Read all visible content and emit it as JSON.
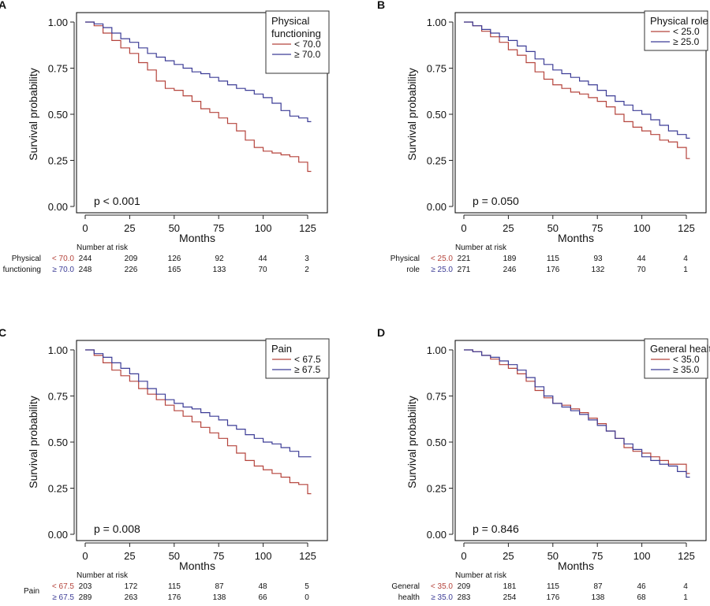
{
  "colors": {
    "low": "#b5443c",
    "high": "#3c3c96",
    "axis": "#222222",
    "frame": "#000000"
  },
  "chart_data": [
    {
      "type": "line",
      "panel_label": "A",
      "title": "",
      "xlabel": "Months",
      "ylabel": "Survival probability",
      "xlim": [
        0,
        130
      ],
      "ylim": [
        0,
        1
      ],
      "x_ticks": [
        "0",
        "25",
        "50",
        "75",
        "100",
        "125"
      ],
      "y_ticks": [
        "0.00",
        "0.25",
        "0.50",
        "0.75",
        "1.00"
      ],
      "legend_title": "Physical\nfunctioning",
      "legend_position": "top-right",
      "p_value": "p < 0.001",
      "risk_header": "Number at risk",
      "risk_label": "Physical\nfunctioning",
      "series": [
        {
          "name": "< 70.0",
          "color": "#b5443c",
          "x": [
            0,
            5,
            10,
            15,
            20,
            25,
            30,
            35,
            40,
            45,
            50,
            55,
            60,
            65,
            70,
            75,
            80,
            85,
            90,
            95,
            100,
            105,
            110,
            115,
            120,
            125,
            127
          ],
          "y": [
            1.0,
            0.98,
            0.94,
            0.9,
            0.86,
            0.83,
            0.78,
            0.74,
            0.68,
            0.64,
            0.63,
            0.6,
            0.57,
            0.53,
            0.51,
            0.48,
            0.45,
            0.41,
            0.36,
            0.32,
            0.3,
            0.29,
            0.28,
            0.27,
            0.24,
            0.19,
            0.19
          ],
          "at_risk": [
            "244",
            "209",
            "126",
            "92",
            "44",
            "3"
          ]
        },
        {
          "name": "≥ 70.0",
          "color": "#3c3c96",
          "x": [
            0,
            5,
            10,
            15,
            20,
            25,
            30,
            35,
            40,
            45,
            50,
            55,
            60,
            65,
            70,
            75,
            80,
            85,
            90,
            95,
            100,
            105,
            110,
            115,
            120,
            125,
            127
          ],
          "y": [
            1.0,
            0.99,
            0.97,
            0.94,
            0.91,
            0.89,
            0.86,
            0.83,
            0.81,
            0.79,
            0.77,
            0.75,
            0.73,
            0.72,
            0.7,
            0.68,
            0.66,
            0.64,
            0.63,
            0.61,
            0.59,
            0.56,
            0.52,
            0.49,
            0.48,
            0.46,
            0.46
          ],
          "at_risk": [
            "248",
            "226",
            "165",
            "133",
            "70",
            "2"
          ]
        }
      ]
    },
    {
      "type": "line",
      "panel_label": "B",
      "title": "",
      "xlabel": "Months",
      "ylabel": "Survival probability",
      "xlim": [
        0,
        130
      ],
      "ylim": [
        0,
        1
      ],
      "x_ticks": [
        "0",
        "25",
        "50",
        "75",
        "100",
        "125"
      ],
      "y_ticks": [
        "0.00",
        "0.25",
        "0.50",
        "0.75",
        "1.00"
      ],
      "legend_title": "Physical role",
      "legend_position": "top-right",
      "p_value": "p = 0.050",
      "risk_header": "Number at risk",
      "risk_label": "Physical\nrole",
      "series": [
        {
          "name": "< 25.0",
          "color": "#b5443c",
          "x": [
            0,
            5,
            10,
            15,
            20,
            25,
            30,
            35,
            40,
            45,
            50,
            55,
            60,
            65,
            70,
            75,
            80,
            85,
            90,
            95,
            100,
            105,
            110,
            115,
            120,
            125,
            127
          ],
          "y": [
            1.0,
            0.98,
            0.95,
            0.92,
            0.89,
            0.85,
            0.82,
            0.78,
            0.73,
            0.69,
            0.66,
            0.64,
            0.62,
            0.61,
            0.59,
            0.57,
            0.54,
            0.5,
            0.46,
            0.43,
            0.41,
            0.39,
            0.36,
            0.35,
            0.32,
            0.26,
            0.26
          ],
          "at_risk": [
            "221",
            "189",
            "115",
            "93",
            "44",
            "4"
          ]
        },
        {
          "name": "≥ 25.0",
          "color": "#3c3c96",
          "x": [
            0,
            5,
            10,
            15,
            20,
            25,
            30,
            35,
            40,
            45,
            50,
            55,
            60,
            65,
            70,
            75,
            80,
            85,
            90,
            95,
            100,
            105,
            110,
            115,
            120,
            125,
            127
          ],
          "y": [
            1.0,
            0.98,
            0.96,
            0.94,
            0.92,
            0.9,
            0.87,
            0.84,
            0.8,
            0.77,
            0.74,
            0.72,
            0.7,
            0.68,
            0.66,
            0.63,
            0.6,
            0.57,
            0.55,
            0.52,
            0.5,
            0.47,
            0.44,
            0.41,
            0.39,
            0.37,
            0.37
          ],
          "at_risk": [
            "271",
            "246",
            "176",
            "132",
            "70",
            "1"
          ]
        }
      ]
    },
    {
      "type": "line",
      "panel_label": "C",
      "title": "",
      "xlabel": "Months",
      "ylabel": "Survival probability",
      "xlim": [
        0,
        130
      ],
      "ylim": [
        0,
        1
      ],
      "x_ticks": [
        "0",
        "25",
        "50",
        "75",
        "100",
        "125"
      ],
      "y_ticks": [
        "0.00",
        "0.25",
        "0.50",
        "0.75",
        "1.00"
      ],
      "legend_title": "Pain",
      "legend_position": "top-right",
      "p_value": "p = 0.008",
      "risk_header": "Number at risk",
      "risk_label": "Pain",
      "series": [
        {
          "name": "< 67.5",
          "color": "#b5443c",
          "x": [
            0,
            5,
            10,
            15,
            20,
            25,
            30,
            35,
            40,
            45,
            50,
            55,
            60,
            65,
            70,
            75,
            80,
            85,
            90,
            95,
            100,
            105,
            110,
            115,
            120,
            125,
            127
          ],
          "y": [
            1.0,
            0.97,
            0.93,
            0.89,
            0.86,
            0.83,
            0.79,
            0.76,
            0.73,
            0.7,
            0.67,
            0.64,
            0.61,
            0.58,
            0.55,
            0.52,
            0.48,
            0.44,
            0.4,
            0.37,
            0.35,
            0.33,
            0.31,
            0.28,
            0.27,
            0.22,
            0.22
          ],
          "at_risk": [
            "203",
            "172",
            "115",
            "87",
            "48",
            "5"
          ]
        },
        {
          "name": "≥ 67.5",
          "color": "#3c3c96",
          "x": [
            0,
            5,
            10,
            15,
            20,
            25,
            30,
            35,
            40,
            45,
            50,
            55,
            60,
            65,
            70,
            75,
            80,
            85,
            90,
            95,
            100,
            105,
            110,
            115,
            120,
            125,
            127
          ],
          "y": [
            1.0,
            0.98,
            0.96,
            0.93,
            0.9,
            0.87,
            0.83,
            0.79,
            0.76,
            0.73,
            0.71,
            0.69,
            0.68,
            0.66,
            0.64,
            0.62,
            0.59,
            0.57,
            0.54,
            0.52,
            0.5,
            0.49,
            0.47,
            0.45,
            0.42,
            0.42,
            0.42
          ],
          "at_risk": [
            "289",
            "263",
            "176",
            "138",
            "66",
            "0"
          ]
        }
      ]
    },
    {
      "type": "line",
      "panel_label": "D",
      "title": "",
      "xlabel": "Months",
      "ylabel": "Survival probability",
      "xlim": [
        0,
        130
      ],
      "ylim": [
        0,
        1
      ],
      "x_ticks": [
        "0",
        "25",
        "50",
        "75",
        "100",
        "125"
      ],
      "y_ticks": [
        "0.00",
        "0.25",
        "0.50",
        "0.75",
        "1.00"
      ],
      "legend_title": "General health",
      "legend_position": "top-right",
      "p_value": "p = 0.846",
      "risk_header": "Number at risk",
      "risk_label": "General\nhealth",
      "series": [
        {
          "name": "< 35.0",
          "color": "#b5443c",
          "x": [
            0,
            5,
            10,
            15,
            20,
            25,
            30,
            35,
            40,
            45,
            50,
            55,
            60,
            65,
            70,
            75,
            80,
            85,
            90,
            95,
            100,
            105,
            110,
            115,
            120,
            125,
            127
          ],
          "y": [
            1.0,
            0.99,
            0.97,
            0.95,
            0.92,
            0.9,
            0.87,
            0.83,
            0.78,
            0.74,
            0.71,
            0.7,
            0.68,
            0.66,
            0.63,
            0.6,
            0.56,
            0.52,
            0.47,
            0.45,
            0.44,
            0.42,
            0.4,
            0.38,
            0.38,
            0.33,
            0.33
          ],
          "at_risk": [
            "209",
            "181",
            "115",
            "87",
            "46",
            "4"
          ]
        },
        {
          "name": "≥ 35.0",
          "color": "#3c3c96",
          "x": [
            0,
            5,
            10,
            15,
            20,
            25,
            30,
            35,
            40,
            45,
            50,
            55,
            60,
            65,
            70,
            75,
            80,
            85,
            90,
            95,
            100,
            105,
            110,
            115,
            120,
            125,
            127
          ],
          "y": [
            1.0,
            0.99,
            0.97,
            0.96,
            0.94,
            0.92,
            0.89,
            0.85,
            0.8,
            0.75,
            0.71,
            0.69,
            0.67,
            0.65,
            0.62,
            0.59,
            0.56,
            0.52,
            0.49,
            0.46,
            0.42,
            0.4,
            0.38,
            0.37,
            0.34,
            0.31,
            0.31
          ],
          "at_risk": [
            "283",
            "254",
            "176",
            "138",
            "68",
            "1"
          ]
        }
      ]
    }
  ]
}
